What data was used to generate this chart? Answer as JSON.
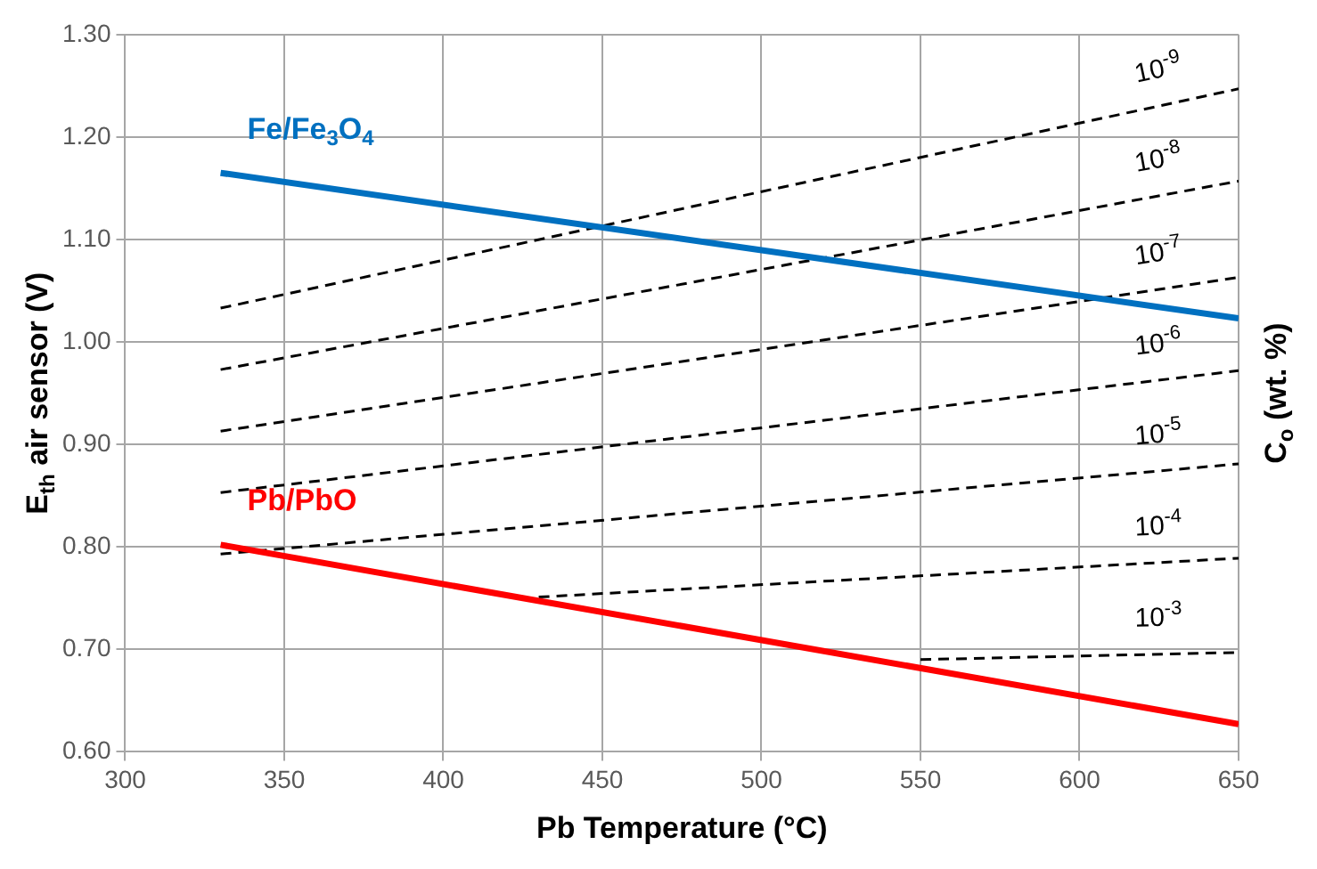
{
  "chart_data": {
    "type": "line",
    "xlabel": "Pb Temperature (°C)",
    "ylabel": "E$_{th}$ air sensor (V)",
    "y2label": "C$_{o}$ (wt. %)",
    "xlim": [
      300,
      650
    ],
    "xticks": [
      300,
      350,
      400,
      450,
      500,
      550,
      600,
      650
    ],
    "ylim": [
      0.6,
      1.3
    ],
    "yticks": [
      {
        "value": 0.6,
        "label": "0.60"
      },
      {
        "value": 0.7,
        "label": "0.70"
      },
      {
        "value": 0.8,
        "label": "0.80"
      },
      {
        "value": 0.9,
        "label": "0.90"
      },
      {
        "value": 1.0,
        "label": "1.00"
      },
      {
        "value": 1.1,
        "label": "1.10"
      },
      {
        "value": 1.2,
        "label": "1.20"
      },
      {
        "value": 1.3,
        "label": "1.30"
      }
    ],
    "grid": true,
    "marker": "none",
    "series": [
      {
        "name": "Fe/Fe$_{3}$O$_{4}$",
        "color": "#0070c0",
        "line_style": "solid",
        "x": [
          330,
          650
        ],
        "values": [
          1.165,
          1.023
        ]
      },
      {
        "name": "Pb/PbO",
        "color": "#ff0000",
        "line_style": "solid",
        "x": [
          330,
          650
        ],
        "values": [
          0.802,
          0.627
        ]
      },
      {
        "name": "10$^{-9}$",
        "color": "#000000",
        "line_style": "dashed",
        "x": [
          330,
          650
        ],
        "values": [
          1.033,
          1.247
        ]
      },
      {
        "name": "10$^{-8}$",
        "color": "#000000",
        "line_style": "dashed",
        "x": [
          330,
          650
        ],
        "values": [
          0.973,
          1.157
        ]
      },
      {
        "name": "10$^{-7}$",
        "color": "#000000",
        "line_style": "dashed",
        "x": [
          330,
          650
        ],
        "values": [
          0.913,
          1.063
        ]
      },
      {
        "name": "10$^{-6}$",
        "color": "#000000",
        "line_style": "dashed",
        "x": [
          330,
          650
        ],
        "values": [
          0.853,
          0.972
        ]
      },
      {
        "name": "10$^{-5}$",
        "color": "#000000",
        "line_style": "dashed",
        "x": [
          330,
          650
        ],
        "values": [
          0.793,
          0.881
        ]
      },
      {
        "name": "10$^{-4}$",
        "color": "#000000",
        "line_style": "dashed",
        "x": [
          430,
          650
        ],
        "values": [
          0.751,
          0.789
        ]
      },
      {
        "name": "10$^{-3}$",
        "color": "#000000",
        "line_style": "dashed",
        "x": [
          550,
          650
        ],
        "values": [
          0.69,
          0.697
        ]
      }
    ]
  }
}
